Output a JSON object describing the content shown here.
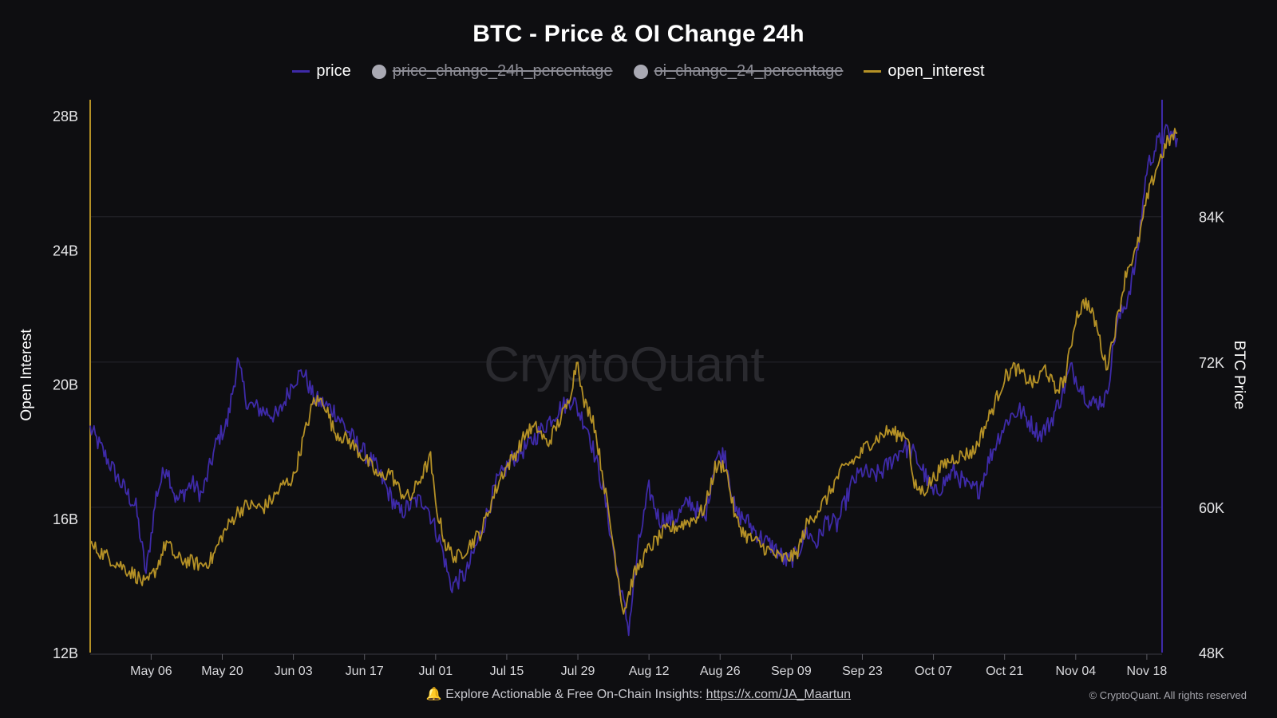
{
  "title": "BTC - Price & OI Change 24h",
  "legend": [
    {
      "label": "price",
      "kind": "line",
      "color": "#3e2aa8",
      "hidden": false
    },
    {
      "label": "price_change_24h_percentage",
      "kind": "dot",
      "color": "#a9a9b3",
      "hidden": true
    },
    {
      "label": "oi_change_24_percentage",
      "kind": "dot",
      "color": "#a9a9b3",
      "hidden": true
    },
    {
      "label": "open_interest",
      "kind": "line",
      "color": "#b59126",
      "hidden": false
    }
  ],
  "watermark": "CryptoQuant",
  "footer": {
    "icon": "bell-icon",
    "text": "🔔 Explore Actionable & Free On-Chain Insights: ",
    "link": "https://x.com/JA_Maartun"
  },
  "copyright": "© CryptoQuant. All rights reserved",
  "colors": {
    "price": "#3e2aa8",
    "open_interest": "#b59126",
    "background": "#0e0e11",
    "grid": "#26262c"
  },
  "chart_data": {
    "type": "line",
    "title": "BTC - Price & OI Change 24h",
    "ylabel_left": "Open Interest",
    "ylabel_right": "BTC Price",
    "left_ticks": [
      "12B",
      "16B",
      "20B",
      "24B",
      "28B"
    ],
    "left_tick_values": [
      12,
      16,
      20,
      24,
      28
    ],
    "ylim_left": [
      12,
      28.6
    ],
    "right_ticks": [
      "48K",
      "60K",
      "72K",
      "84K"
    ],
    "right_tick_values": [
      48,
      60,
      72,
      84
    ],
    "ylim_right": [
      48,
      94
    ],
    "x_ticks": [
      "May 06",
      "May 20",
      "Jun 03",
      "Jun 17",
      "Jul 01",
      "Jul 15",
      "Jul 29",
      "Aug 12",
      "Aug 26",
      "Sep 09",
      "Sep 23",
      "Oct 07",
      "Oct 21",
      "Nov 04",
      "Nov 18"
    ],
    "x_tick_days": [
      8,
      22,
      36,
      50,
      64,
      78,
      92,
      106,
      120,
      134,
      148,
      162,
      176,
      190,
      204
    ],
    "xlim": [
      -4,
      207
    ],
    "grid": true,
    "legend_position": "top-center",
    "series": [
      {
        "name": "price",
        "unit": "K USD",
        "axis": "right",
        "points": [
          [
            -4,
            66.5
          ],
          [
            0,
            63.5
          ],
          [
            2,
            62
          ],
          [
            5,
            60
          ],
          [
            7,
            54.5
          ],
          [
            9,
            61
          ],
          [
            11,
            63.5
          ],
          [
            13,
            60.5
          ],
          [
            16,
            62
          ],
          [
            18,
            61
          ],
          [
            21,
            65.5
          ],
          [
            23,
            67
          ],
          [
            25,
            72
          ],
          [
            27,
            68.5
          ],
          [
            30,
            68
          ],
          [
            33,
            67.5
          ],
          [
            36,
            70.5
          ],
          [
            38,
            71.2
          ],
          [
            40,
            69
          ],
          [
            44,
            68
          ],
          [
            48,
            65.5
          ],
          [
            52,
            63.5
          ],
          [
            55,
            61
          ],
          [
            57,
            59.5
          ],
          [
            60,
            60.5
          ],
          [
            62,
            60.5
          ],
          [
            65,
            57
          ],
          [
            67,
            53.5
          ],
          [
            70,
            54.5
          ],
          [
            73,
            58
          ],
          [
            76,
            62
          ],
          [
            79,
            64
          ],
          [
            82,
            65
          ],
          [
            85,
            66.5
          ],
          [
            88,
            68
          ],
          [
            91,
            69
          ],
          [
            92,
            68
          ],
          [
            94,
            66.5
          ],
          [
            97,
            61.5
          ],
          [
            100,
            54
          ],
          [
            102,
            50
          ],
          [
            104,
            57
          ],
          [
            106,
            61.5
          ],
          [
            108,
            59
          ],
          [
            111,
            59
          ],
          [
            114,
            60.5
          ],
          [
            117,
            59
          ],
          [
            119,
            64
          ],
          [
            121,
            64.5
          ],
          [
            123,
            59.5
          ],
          [
            125,
            59
          ],
          [
            128,
            57.5
          ],
          [
            131,
            56.5
          ],
          [
            133,
            55.5
          ],
          [
            135,
            56
          ],
          [
            137,
            58
          ],
          [
            139,
            57
          ],
          [
            141,
            59
          ],
          [
            143,
            58.5
          ],
          [
            146,
            62
          ],
          [
            148,
            63
          ],
          [
            150,
            62.5
          ],
          [
            152,
            63
          ],
          [
            154,
            64
          ],
          [
            156,
            65
          ],
          [
            158,
            64.5
          ],
          [
            160,
            63
          ],
          [
            162,
            61
          ],
          [
            164,
            62
          ],
          [
            166,
            63
          ],
          [
            167,
            62.5
          ],
          [
            169,
            61.5
          ],
          [
            171,
            61.5
          ],
          [
            173,
            64
          ],
          [
            175,
            66
          ],
          [
            177,
            67.5
          ],
          [
            179,
            68
          ],
          [
            181,
            67
          ],
          [
            183,
            66
          ],
          [
            185,
            67
          ],
          [
            187,
            69
          ],
          [
            189,
            71.5
          ],
          [
            191,
            70
          ],
          [
            193,
            68.5
          ],
          [
            196,
            69
          ],
          [
            198,
            75
          ],
          [
            200,
            77
          ],
          [
            202,
            80.5
          ],
          [
            204,
            88
          ],
          [
            206,
            90
          ],
          [
            208,
            91
          ],
          [
            210,
            90.5
          ]
        ]
      },
      {
        "name": "open_interest",
        "unit": "B USD",
        "axis": "left",
        "points": [
          [
            -4,
            15.2
          ],
          [
            0,
            14.8
          ],
          [
            3,
            14.5
          ],
          [
            5,
            14.3
          ],
          [
            7,
            14
          ],
          [
            9,
            14.5
          ],
          [
            11,
            15.3
          ],
          [
            13,
            14.8
          ],
          [
            16,
            14.7
          ],
          [
            18,
            14.6
          ],
          [
            20,
            14.8
          ],
          [
            22,
            15.5
          ],
          [
            25,
            16.2
          ],
          [
            27,
            16.4
          ],
          [
            30,
            16.3
          ],
          [
            32,
            16.6
          ],
          [
            34,
            17
          ],
          [
            36,
            17.2
          ],
          [
            38,
            18.4
          ],
          [
            40,
            19.5
          ],
          [
            42,
            19.5
          ],
          [
            44,
            18.6
          ],
          [
            47,
            18.3
          ],
          [
            50,
            17.8
          ],
          [
            53,
            17.2
          ],
          [
            55,
            17.4
          ],
          [
            57,
            16.8
          ],
          [
            59,
            16.6
          ],
          [
            61,
            17.2
          ],
          [
            63,
            17.8
          ],
          [
            64,
            16.4
          ],
          [
            66,
            15.2
          ],
          [
            68,
            14.8
          ],
          [
            70,
            15.1
          ],
          [
            73,
            15.6
          ],
          [
            75,
            16.5
          ],
          [
            77,
            17.3
          ],
          [
            80,
            18
          ],
          [
            82,
            18.6
          ],
          [
            84,
            18.7
          ],
          [
            86,
            18.2
          ],
          [
            88,
            18.8
          ],
          [
            90,
            19.4
          ],
          [
            92,
            20.8
          ],
          [
            93,
            19.5
          ],
          [
            95,
            19
          ],
          [
            97,
            17.2
          ],
          [
            99,
            15.2
          ],
          [
            101,
            13.2
          ],
          [
            103,
            14.3
          ],
          [
            106,
            15.1
          ],
          [
            109,
            15.6
          ],
          [
            112,
            15.8
          ],
          [
            115,
            16
          ],
          [
            117,
            16.3
          ],
          [
            119,
            17.5
          ],
          [
            121,
            17.6
          ],
          [
            123,
            16
          ],
          [
            125,
            15.5
          ],
          [
            128,
            15.2
          ],
          [
            130,
            15
          ],
          [
            132,
            14.8
          ],
          [
            135,
            14.9
          ],
          [
            137,
            15.8
          ],
          [
            139,
            16.2
          ],
          [
            141,
            16.6
          ],
          [
            143,
            17.2
          ],
          [
            145,
            17.6
          ],
          [
            147,
            17.8
          ],
          [
            149,
            18.2
          ],
          [
            151,
            18.4
          ],
          [
            153,
            18.6
          ],
          [
            155,
            18.5
          ],
          [
            157,
            18.5
          ],
          [
            158,
            17
          ],
          [
            160,
            16.8
          ],
          [
            162,
            17.2
          ],
          [
            164,
            17.6
          ],
          [
            166,
            17.8
          ],
          [
            168,
            17.9
          ],
          [
            170,
            18
          ],
          [
            172,
            18.7
          ],
          [
            174,
            19.4
          ],
          [
            176,
            20.2
          ],
          [
            178,
            20.5
          ],
          [
            180,
            20.2
          ],
          [
            182,
            20
          ],
          [
            184,
            20.5
          ],
          [
            186,
            19.8
          ],
          [
            188,
            20.2
          ],
          [
            190,
            22
          ],
          [
            192,
            22.5
          ],
          [
            194,
            21.8
          ],
          [
            196,
            20.5
          ],
          [
            198,
            21.8
          ],
          [
            200,
            23.4
          ],
          [
            202,
            24
          ],
          [
            204,
            25.5
          ],
          [
            206,
            26.5
          ],
          [
            208,
            27.2
          ],
          [
            210,
            27.5
          ]
        ]
      }
    ]
  }
}
